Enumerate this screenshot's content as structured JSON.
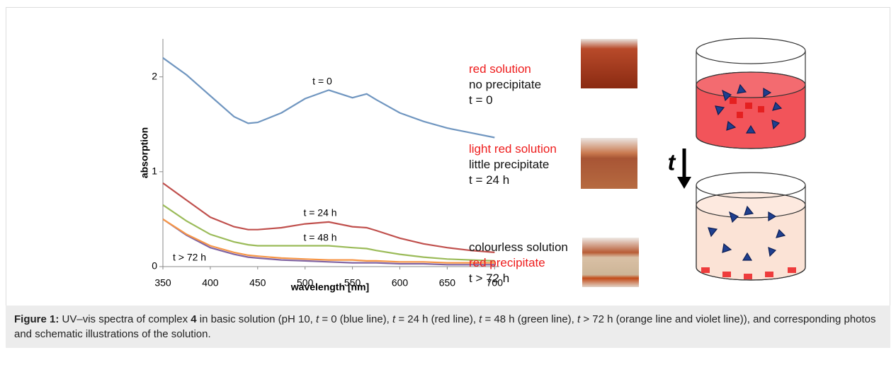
{
  "chart_data": {
    "type": "line",
    "x_label": "wavelength [nm]",
    "y_label": "absorption",
    "x": [
      350,
      375,
      400,
      425,
      440,
      450,
      475,
      500,
      525,
      550,
      565,
      575,
      600,
      625,
      650,
      675,
      700
    ],
    "series": [
      {
        "color": "#7096c0",
        "values": [
          2.2,
          2.02,
          1.8,
          1.58,
          1.51,
          1.52,
          1.62,
          1.77,
          1.86,
          1.78,
          1.82,
          1.76,
          1.62,
          1.53,
          1.46,
          1.41,
          1.36
        ]
      },
      {
        "color": "#c0504d",
        "values": [
          0.88,
          0.7,
          0.52,
          0.42,
          0.39,
          0.39,
          0.41,
          0.45,
          0.47,
          0.42,
          0.41,
          0.38,
          0.3,
          0.24,
          0.2,
          0.17,
          0.15
        ]
      },
      {
        "color": "#9bbb59",
        "values": [
          0.65,
          0.48,
          0.34,
          0.26,
          0.23,
          0.22,
          0.22,
          0.22,
          0.22,
          0.2,
          0.19,
          0.17,
          0.13,
          0.1,
          0.08,
          0.07,
          0.06
        ]
      },
      {
        "color": "#8064a2",
        "values": [
          0.5,
          0.33,
          0.2,
          0.13,
          0.1,
          0.09,
          0.07,
          0.06,
          0.05,
          0.04,
          0.04,
          0.04,
          0.03,
          0.03,
          0.02,
          0.02,
          0.02
        ]
      },
      {
        "color": "#f79646",
        "values": [
          0.5,
          0.34,
          0.22,
          0.15,
          0.12,
          0.11,
          0.09,
          0.08,
          0.07,
          0.07,
          0.06,
          0.06,
          0.05,
          0.05,
          0.04,
          0.04,
          0.04
        ]
      }
    ],
    "annotations": [
      "t = 0",
      "t = 24 h",
      "t = 48 h",
      "t > 72 h"
    ],
    "xlim": [
      350,
      705
    ],
    "ylim": [
      0,
      2.4
    ],
    "xticks": [
      350,
      400,
      450,
      500,
      550,
      600,
      650,
      700
    ],
    "yticks": [
      0,
      1,
      2
    ],
    "grid": false
  },
  "states": [
    {
      "lines": [
        "red solution",
        "no precipitate",
        "t = 0"
      ]
    },
    {
      "lines": [
        "light red solution",
        "little precipitate",
        "t = 24 h"
      ]
    },
    {
      "lines": [
        "colourless solution",
        "red precipitate",
        "t > 72 h"
      ]
    }
  ],
  "arrow_label": "t",
  "caption": [
    "Figure 1:",
    " UV–vis spectra of complex ",
    "4",
    " in basic solution (pH 10, ",
    "t",
    " = 0 (blue line), ",
    "t",
    " = 24 h (red line), ",
    "t",
    " = 48 h (green line), ",
    "t",
    " > 72 h (orange line and violet line)), and corresponding photos and schematic illustrations of the solution."
  ]
}
